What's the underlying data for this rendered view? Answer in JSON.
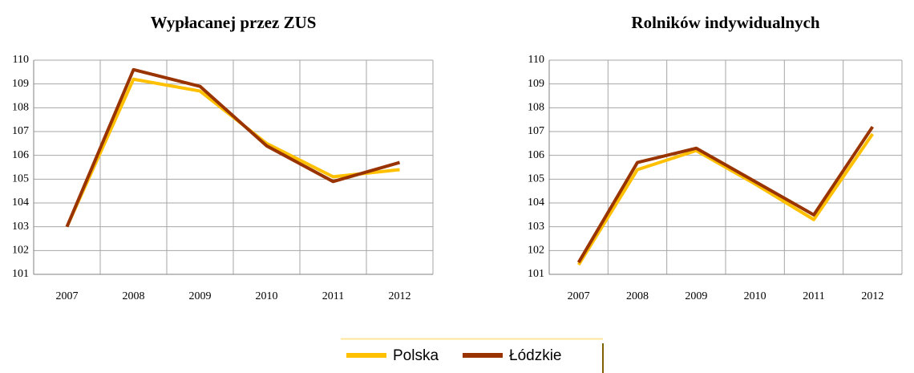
{
  "chart_data": [
    {
      "type": "line",
      "title": "Wypłacanej przez ZUS",
      "categories": [
        "2007",
        "2008",
        "2009",
        "2010",
        "2011",
        "2012"
      ],
      "series": [
        {
          "values": [
            103.0,
            109.2,
            108.7,
            106.5,
            105.1,
            105.4
          ]
        },
        {
          "values": [
            103.0,
            109.6,
            108.9,
            106.4,
            104.9,
            105.7
          ]
        }
      ],
      "ylim": [
        101,
        110
      ],
      "yticks": [
        101,
        102,
        103,
        104,
        105,
        106,
        107,
        108,
        109,
        110
      ],
      "grid": true
    },
    {
      "type": "line",
      "title": "Rolników indywidualnych",
      "categories": [
        "2007",
        "2008",
        "2009",
        "2010",
        "2011",
        "2012"
      ],
      "series": [
        {
          "values": [
            101.4,
            105.4,
            106.2,
            104.8,
            103.3,
            106.9
          ]
        },
        {
          "values": [
            101.5,
            105.7,
            106.3,
            104.9,
            103.5,
            107.2
          ]
        }
      ],
      "ylim": [
        101,
        110
      ],
      "yticks": [
        101,
        102,
        103,
        104,
        105,
        106,
        107,
        108,
        109,
        110
      ],
      "grid": true
    }
  ],
  "legend": {
    "items": [
      {
        "name": "Polska",
        "color": "#ffc000"
      },
      {
        "name": "Łódzkie",
        "color": "#993300"
      }
    ]
  }
}
